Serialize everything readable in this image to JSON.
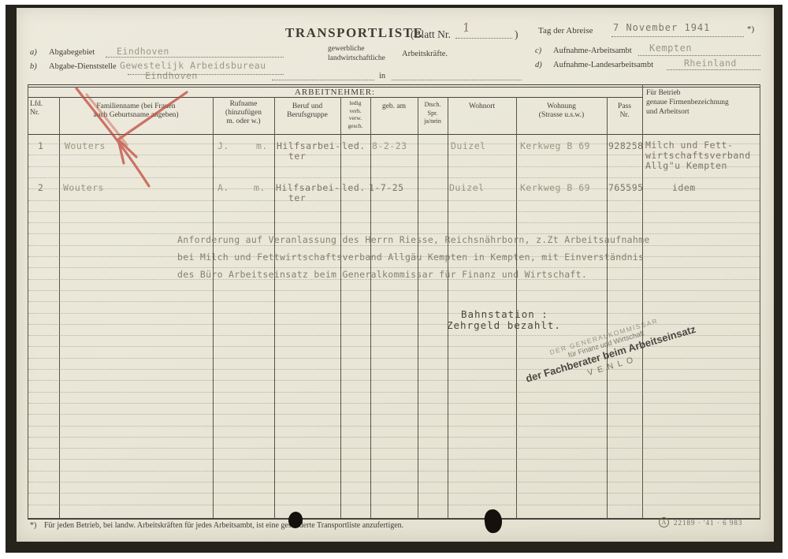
{
  "header": {
    "title": "TRANSPORTLISTE",
    "blatt_label": "(Blatt Nr.",
    "blatt_value": "1",
    "blatt_close": ")",
    "subtitle": {
      "line1": "gewerbliche",
      "line2": "landwirtschaftliche",
      "right": "Arbeitskräfte.",
      "in_word": "in"
    },
    "left": {
      "a_index": "a)",
      "a_label": "Abgabegebiet",
      "a_value": "Eindhoven",
      "b_index": "b)",
      "b_label": "Abgabe-Dienststelle",
      "b_value1": "Gewestelijk Arbeidsbureau",
      "b_value2": "Eindhoven"
    },
    "right": {
      "date_label": "Tag der Abreise",
      "date_value": "7 November 1941",
      "asterisk": "*)",
      "c_index": "c)",
      "c_label": "Aufnahme-Arbeitsambt",
      "c_value": "Kempten",
      "d_index": "d)",
      "d_label": "Aufnahme-Landesarbeitsambt",
      "d_value": "Rheinland"
    }
  },
  "table": {
    "group_header": "ARBEITNEHMER:",
    "columns": {
      "lfd": [
        "Lfd.",
        "Nr."
      ],
      "name": [
        "Familienname (bei Frauen",
        "auch Geburtsname angeben)"
      ],
      "rufname": [
        "Rufname",
        "(hinzufügen",
        "m. oder w.)"
      ],
      "beruf": [
        "Beruf und",
        "Berufsgruppe"
      ],
      "stand": [
        "ledig",
        "verh.",
        "verw.",
        "gesch."
      ],
      "geb": "geb. am",
      "dtsch": [
        "Dtsch.",
        "Spr.",
        "ja/nein"
      ],
      "wohnort": "Wohnort",
      "wohnung": [
        "Wohnung",
        "(Strasse u.s.w.)"
      ],
      "pass": [
        "Pass",
        "Nr."
      ],
      "betrieb": [
        "Für Betrieb",
        "genaue Firmenbezeichnung",
        "und Arbeitsort"
      ]
    },
    "rows": [
      {
        "nr": "1",
        "name": "Wouters",
        "vorname": "J.",
        "mw": "m.",
        "beruf1": "Hilfsarbei-",
        "beruf2": "ter",
        "stand": "led.",
        "geb": "8-2-23",
        "wohnort": "Duizel",
        "wohnung": "Kerkweg B 69",
        "pass": "928258",
        "firma1": "Milch und Fett-",
        "firma2": "wirtschaftsverband",
        "firma3": "Allg\"u Kempten"
      },
      {
        "nr": "2",
        "name": "Wouters",
        "vorname": "A.",
        "mw": "m.",
        "beruf1": "Hilfsarbei-",
        "beruf2": "ter",
        "stand": "led.",
        "geb": "1-7-25",
        "wohnort": "Duizel",
        "wohnung": "Kerkweg B 69",
        "pass": "765595",
        "firma1": "idem"
      }
    ]
  },
  "notes": {
    "para1": "Anforderung auf Veranlassung des Herrn Riesse, Reichsnährborn, z.Zt Arbeitsaufnahme",
    "para2": "bei Milch und Fettwirtschaftsverband Allgäu Kempten in Kempten, mit Einverständnis",
    "para3": "des Büro Arbeitseinsatz beim Generalkommissar für Finanz und Wirtschaft.",
    "bahnstation": "Bahnstation :",
    "zehrgeld": "Zehrgeld bezahlt."
  },
  "stamp": {
    "line1": "DER GENERALKOMMISSAR",
    "line2": "für Finanz und Wirtschaft",
    "line3": "der Fachberater beim Arbeitseinsatz",
    "line4": "VENLO"
  },
  "footer": {
    "marker": "*)",
    "note": "Für jeden Betrieb, bei landw. Arbeitskräften für jedes Arbeitsambt, ist eine gesonderte Transportliste anzufertigen.",
    "printer_logo": "A",
    "printer_code": "22189 · '41 · 6 983"
  },
  "colors": {
    "paper": "#eae7d9",
    "print_ink": "#3f3d35",
    "typed_faded": "#98937f",
    "typed_dark": "#4a4740",
    "red_pencil": "#c14b3e",
    "stamp_ink": "#3c3a34"
  }
}
